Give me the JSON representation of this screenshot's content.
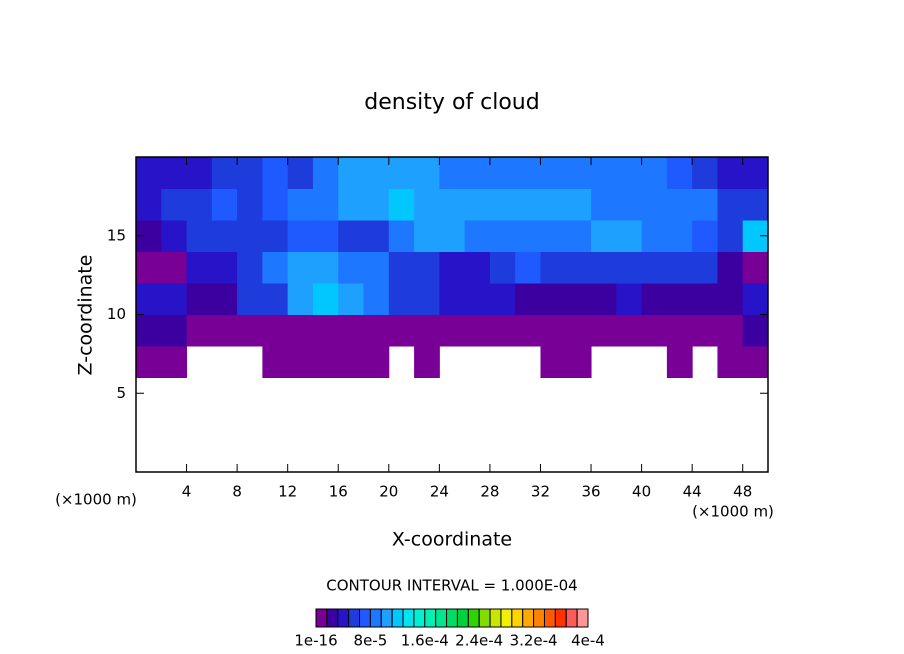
{
  "chart_data": {
    "type": "contour",
    "title": "density of cloud",
    "x_label": "X-coordinate",
    "y_label": "Z-coordinate",
    "x_unit": "(×1000 m)",
    "y_unit": "(×1000 m)",
    "note": "CONTOUR INTERVAL = 1.000E-04",
    "xlim": [
      0,
      50
    ],
    "ylim": [
      0,
      20
    ],
    "xticks": [
      4,
      8,
      12,
      16,
      20,
      24,
      28,
      32,
      36,
      40,
      44,
      48
    ],
    "yticks": [
      5,
      10,
      15
    ],
    "grid": false,
    "x": [
      1,
      3,
      5,
      7,
      9,
      11,
      13,
      15,
      17,
      19,
      21,
      23,
      25,
      27,
      29,
      31,
      33,
      35,
      37,
      39,
      41,
      43,
      45,
      47,
      49
    ],
    "y": [
      1,
      3,
      5,
      7,
      9,
      11,
      13,
      15,
      17,
      19
    ],
    "z": [
      [
        null,
        null,
        null,
        null,
        null,
        null,
        null,
        null,
        null,
        null,
        null,
        null,
        null,
        null,
        null,
        null,
        null,
        null,
        null,
        null,
        null,
        null,
        null,
        null,
        null
      ],
      [
        null,
        null,
        null,
        null,
        null,
        null,
        null,
        null,
        null,
        null,
        null,
        null,
        null,
        null,
        null,
        null,
        null,
        null,
        null,
        null,
        null,
        null,
        null,
        null,
        null
      ],
      [
        null,
        null,
        null,
        null,
        null,
        null,
        null,
        null,
        null,
        null,
        null,
        null,
        null,
        null,
        null,
        null,
        null,
        null,
        null,
        null,
        null,
        null,
        null,
        null,
        null
      ],
      [
        1.5e-05,
        1e-05,
        null,
        null,
        null,
        1e-05,
        1e-05,
        1e-05,
        1e-05,
        1e-05,
        null,
        1e-05,
        null,
        null,
        null,
        null,
        1e-05,
        1e-05,
        null,
        null,
        null,
        1e-05,
        null,
        1e-05,
        1e-05
      ],
      [
        3e-05,
        2.5e-05,
        1e-05,
        1e-05,
        1e-05,
        1e-05,
        1.2e-05,
        1.2e-05,
        1e-05,
        1e-05,
        1e-05,
        1e-05,
        1e-05,
        1e-05,
        1e-05,
        1e-05,
        1e-05,
        1e-05,
        1e-05,
        1e-05,
        1e-05,
        1e-05,
        1e-05,
        1e-05,
        3e-05
      ],
      [
        4e-05,
        4e-05,
        3e-05,
        3e-05,
        5e-05,
        6e-05,
        0.00011,
        0.00012,
        0.00011,
        9e-05,
        6e-05,
        5e-05,
        4e-05,
        4e-05,
        3.5e-05,
        3e-05,
        3e-05,
        3e-05,
        3e-05,
        3.5e-05,
        3e-05,
        3e-05,
        3e-05,
        3e-05,
        4e-05
      ],
      [
        1e-05,
        1e-05,
        4e-05,
        4e-05,
        5e-05,
        8e-05,
        0.0001,
        0.0001,
        9e-05,
        8e-05,
        6e-05,
        5e-05,
        4e-05,
        4e-05,
        6e-05,
        7e-05,
        5e-05,
        5e-05,
        5e-05,
        5e-05,
        5e-05,
        5e-05,
        5e-05,
        3e-05,
        1e-05
      ],
      [
        2e-05,
        4e-05,
        5e-05,
        5e-05,
        6e-05,
        6e-05,
        7e-05,
        7e-05,
        6e-05,
        5e-05,
        8e-05,
        0.0001,
        0.0001,
        9e-05,
        8e-05,
        8e-05,
        9e-05,
        9e-05,
        0.0001,
        0.0001,
        9e-05,
        8e-05,
        7e-05,
        6e-05,
        0.00012
      ],
      [
        4e-05,
        5e-05,
        6e-05,
        7e-05,
        6e-05,
        7e-05,
        8e-05,
        9e-05,
        0.0001,
        0.00011,
        0.00012,
        0.00011,
        0.0001,
        0.0001,
        0.0001,
        0.0001,
        0.0001,
        0.0001,
        9e-05,
        9e-05,
        9e-05,
        8e-05,
        8e-05,
        6e-05,
        6e-05
      ],
      [
        4e-05,
        4e-05,
        4e-05,
        5e-05,
        6e-05,
        7e-05,
        6e-05,
        9e-05,
        0.0001,
        0.0001,
        0.0001,
        0.0001,
        9e-05,
        9e-05,
        9e-05,
        9e-05,
        9e-05,
        8e-05,
        8e-05,
        8e-05,
        8e-05,
        7e-05,
        6e-05,
        4e-05,
        4e-05
      ]
    ],
    "colorbar": {
      "ticks": [
        {
          "value": 1e-16,
          "label": "1e-16"
        },
        {
          "value": 8e-05,
          "label": "8e-5"
        },
        {
          "value": 0.00016,
          "label": "1.6e-4"
        },
        {
          "value": 0.00024,
          "label": "2.4e-4"
        },
        {
          "value": 0.00032,
          "label": "3.2e-4"
        },
        {
          "value": 0.0004,
          "label": "4e-4"
        }
      ],
      "colors": [
        "#780096",
        "#3c00a0",
        "#2814c8",
        "#1e3cdc",
        "#1e5aff",
        "#1e78ff",
        "#1ea0ff",
        "#00c8ff",
        "#00e6f0",
        "#00f0d2",
        "#00f0b4",
        "#00e68c",
        "#00dc64",
        "#00d23c",
        "#32d200",
        "#82dc00",
        "#c8e600",
        "#f0f000",
        "#ffd200",
        "#ffaa00",
        "#ff8200",
        "#ff5a00",
        "#ff3200",
        "#ff5a5a",
        "#ff9696"
      ]
    }
  }
}
